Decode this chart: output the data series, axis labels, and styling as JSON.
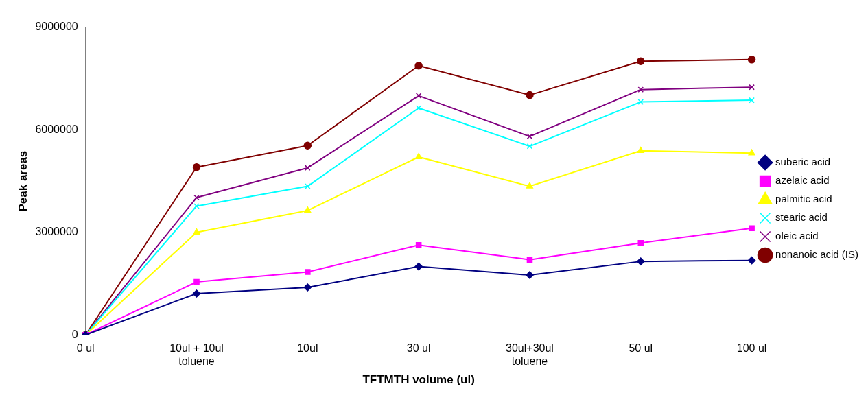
{
  "chart_data": {
    "type": "line",
    "xlabel": "TFTMTH volume (ul)",
    "ylabel": "Peak areas",
    "categories": [
      "0 ul",
      "10ul + 10ul toluene",
      "10ul",
      "30 ul",
      "30ul+30ul toluene",
      "50 ul",
      "100 ul"
    ],
    "ylim": [
      0,
      9000000
    ],
    "yticks": [
      0,
      3000000,
      6000000,
      9000000
    ],
    "grid": false,
    "legend": "right",
    "series": [
      {
        "name": "suberic acid",
        "color": "#000080",
        "marker": "diamond",
        "values": [
          0,
          1210000,
          1390000,
          2000000,
          1750000,
          2150000,
          2180000
        ]
      },
      {
        "name": "azelaic acid",
        "color": "#ff00ff",
        "marker": "square",
        "values": [
          0,
          1550000,
          1840000,
          2630000,
          2200000,
          2690000,
          3120000
        ]
      },
      {
        "name": "palmitic acid",
        "color": "#ffff00",
        "marker": "triangle",
        "values": [
          0,
          3000000,
          3640000,
          5210000,
          4350000,
          5390000,
          5320000
        ]
      },
      {
        "name": "stearic acid",
        "color": "#00ffff",
        "marker": "cross",
        "values": [
          0,
          3770000,
          4350000,
          6640000,
          5520000,
          6820000,
          6870000
        ]
      },
      {
        "name": "oleic acid",
        "color": "#800080",
        "marker": "cross",
        "values": [
          0,
          4020000,
          4890000,
          7000000,
          5810000,
          7180000,
          7250000
        ]
      },
      {
        "name": "nonanoic acid (IS)",
        "color": "#800000",
        "marker": "circle",
        "values": [
          0,
          4910000,
          5540000,
          7880000,
          7020000,
          8010000,
          8060000
        ]
      }
    ]
  }
}
